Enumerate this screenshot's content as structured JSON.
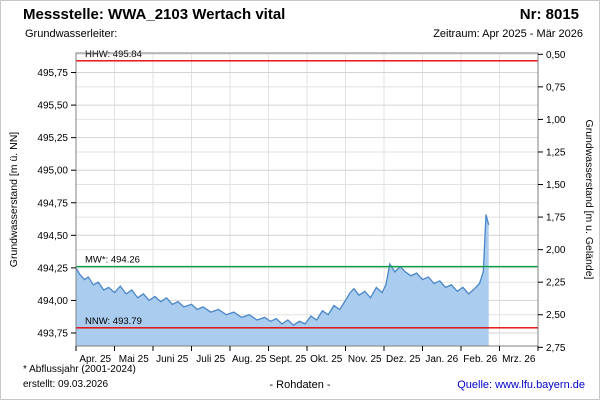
{
  "header": {
    "title": "Messstelle: WWA_2103 Wertach vital",
    "number": "Nr: 8015",
    "subtitle_left": "Grundwasserleiter:",
    "subtitle_right": "Zeitraum: Apr 2025 - Mär 2026"
  },
  "footer": {
    "note": "* Abflussjahr (2001-2024)",
    "created": "erstellt:  09.03.2026",
    "center": "- Rohdaten -",
    "source": "Quelle: www.lfu.bayern.de"
  },
  "colors": {
    "ref_red": "#e60000",
    "ref_green": "#00a040",
    "series_line": "#4a86c8",
    "series_fill": "#aaccee",
    "grid": "#d4d4d4",
    "grid_light": "#e2e2e2",
    "frame": "#808080",
    "link_blue": "#0000cc"
  },
  "chart_data": {
    "type": "area",
    "title": "",
    "left_axis": {
      "label": "Grundwasserstand [m ü. NN]",
      "range": [
        493.65,
        495.9
      ],
      "tick_values": [
        495.75,
        495.5,
        495.25,
        495.0,
        494.75,
        494.5,
        494.25,
        494.0,
        493.75
      ],
      "tick_labels": [
        "495,75",
        "495,50",
        "495,25",
        "495,00",
        "494,75",
        "494,50",
        "494,25",
        "494,00",
        "493,75"
      ]
    },
    "right_axis": {
      "label": "Grundwasserstand [m u. Gelände]",
      "ground_offset": 496.39,
      "tick_values": [
        0.5,
        0.75,
        1.0,
        1.25,
        1.5,
        1.75,
        2.0,
        2.25,
        2.5,
        2.75
      ],
      "tick_labels": [
        "0,50",
        "0,75",
        "1,00",
        "1,25",
        "1,50",
        "1,75",
        "2,00",
        "2,25",
        "2,50",
        "2,75"
      ]
    },
    "x_axis": {
      "months": 12,
      "unit": "month offset from Apr 2025",
      "labels": [
        "Apr. 25",
        "Mai 25",
        "Juni 25",
        "Juli 25",
        "Aug. 25",
        "Sept. 25",
        "Okt. 25",
        "Nov. 25",
        "Dez. 25",
        "Jan. 26",
        "Feb. 26",
        "Mrz. 26"
      ]
    },
    "reference_lines": [
      {
        "name": "HHW",
        "label": "HHW: 495.84",
        "value": 495.84,
        "color": "red"
      },
      {
        "name": "MW",
        "label": "MW*: 494.26",
        "value": 494.26,
        "color": "green"
      },
      {
        "name": "NNW",
        "label": "NNW: 493.79",
        "value": 493.79,
        "color": "red"
      }
    ],
    "series": [
      {
        "name": "Grundwasserstand Rohdaten",
        "points": [
          [
            0.0,
            494.25
          ],
          [
            0.1,
            494.2
          ],
          [
            0.22,
            494.16
          ],
          [
            0.32,
            494.18
          ],
          [
            0.45,
            494.12
          ],
          [
            0.58,
            494.14
          ],
          [
            0.72,
            494.08
          ],
          [
            0.85,
            494.1
          ],
          [
            1.0,
            494.06
          ],
          [
            1.15,
            494.11
          ],
          [
            1.3,
            494.05
          ],
          [
            1.45,
            494.08
          ],
          [
            1.6,
            494.02
          ],
          [
            1.75,
            494.05
          ],
          [
            1.9,
            494.0
          ],
          [
            2.05,
            494.03
          ],
          [
            2.2,
            493.99
          ],
          [
            2.35,
            494.02
          ],
          [
            2.5,
            493.97
          ],
          [
            2.65,
            493.99
          ],
          [
            2.8,
            493.95
          ],
          [
            3.0,
            493.97
          ],
          [
            3.15,
            493.93
          ],
          [
            3.3,
            493.95
          ],
          [
            3.5,
            493.91
          ],
          [
            3.7,
            493.93
          ],
          [
            3.9,
            493.89
          ],
          [
            4.1,
            493.91
          ],
          [
            4.3,
            493.87
          ],
          [
            4.5,
            493.89
          ],
          [
            4.7,
            493.85
          ],
          [
            4.9,
            493.87
          ],
          [
            5.05,
            493.84
          ],
          [
            5.2,
            493.86
          ],
          [
            5.35,
            493.82
          ],
          [
            5.5,
            493.85
          ],
          [
            5.65,
            493.81
          ],
          [
            5.8,
            493.84
          ],
          [
            5.95,
            493.82
          ],
          [
            6.1,
            493.88
          ],
          [
            6.25,
            493.85
          ],
          [
            6.4,
            493.92
          ],
          [
            6.55,
            493.89
          ],
          [
            6.7,
            493.96
          ],
          [
            6.85,
            493.93
          ],
          [
            7.0,
            494.0
          ],
          [
            7.12,
            494.06
          ],
          [
            7.22,
            494.09
          ],
          [
            7.35,
            494.04
          ],
          [
            7.5,
            494.07
          ],
          [
            7.65,
            494.02
          ],
          [
            7.8,
            494.1
          ],
          [
            7.95,
            494.06
          ],
          [
            8.05,
            494.12
          ],
          [
            8.15,
            494.28
          ],
          [
            8.28,
            494.22
          ],
          [
            8.42,
            494.26
          ],
          [
            8.55,
            494.22
          ],
          [
            8.7,
            494.19
          ],
          [
            8.85,
            494.21
          ],
          [
            9.0,
            494.16
          ],
          [
            9.15,
            494.18
          ],
          [
            9.3,
            494.13
          ],
          [
            9.45,
            494.15
          ],
          [
            9.6,
            494.1
          ],
          [
            9.75,
            494.12
          ],
          [
            9.9,
            494.07
          ],
          [
            10.05,
            494.1
          ],
          [
            10.2,
            494.05
          ],
          [
            10.35,
            494.09
          ],
          [
            10.48,
            494.13
          ],
          [
            10.58,
            494.22
          ],
          [
            10.65,
            494.66
          ],
          [
            10.72,
            494.58
          ]
        ]
      }
    ]
  }
}
